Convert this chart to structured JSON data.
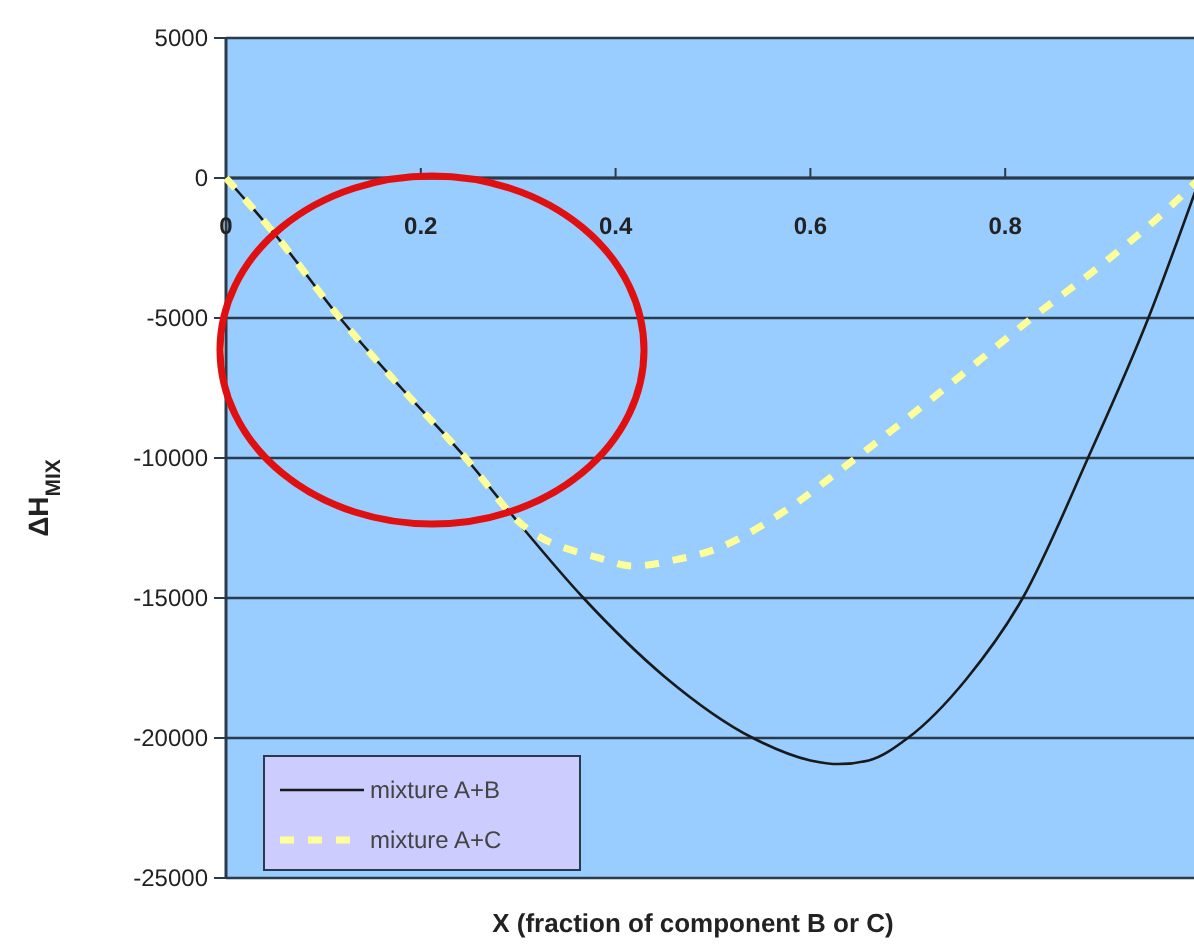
{
  "chart_data": {
    "type": "line",
    "xlabel": "X  (fraction of component B or C)",
    "ylabel": "ΔH$_{MIX}$",
    "xlim": [
      0,
      1
    ],
    "ylim": [
      -25000,
      5000
    ],
    "xticks": [
      0,
      0.2,
      0.4,
      0.6,
      0.8
    ],
    "yticks": [
      5000,
      0,
      -5000,
      -10000,
      -15000,
      -20000,
      -25000
    ],
    "grid": "y",
    "legend": "bottom left",
    "marker": "none",
    "series": [
      {
        "name": "mixture A+B",
        "color": "#1a1a1a",
        "line_style": "solid",
        "x": [
          0,
          0.05,
          0.117,
          0.18,
          0.246,
          0.3,
          0.367,
          0.45,
          0.541,
          0.6,
          0.629,
          0.66,
          0.7,
          0.76,
          0.818,
          0.885,
          0.947,
          1
        ],
        "values": [
          0,
          -2000,
          -5000,
          -7500,
          -10000,
          -12300,
          -15000,
          -17800,
          -20000,
          -20800,
          -20930,
          -20800,
          -20000,
          -17900,
          -15000,
          -10000,
          -5000,
          0
        ]
      },
      {
        "name": "mixture A+C",
        "color": "#ffff99",
        "line_style": "dashed",
        "x": [
          0,
          0.05,
          0.117,
          0.18,
          0.246,
          0.301,
          0.383,
          0.418,
          0.461,
          0.5,
          0.572,
          0.639,
          0.736,
          0.83,
          0.9,
          0.961,
          1
        ],
        "values": [
          0,
          -2000,
          -5000,
          -7500,
          -10000,
          -12290,
          -13570,
          -13860,
          -13640,
          -13290,
          -11930,
          -10210,
          -7570,
          -4930,
          -3070,
          -1290,
          0
        ]
      }
    ]
  }
}
